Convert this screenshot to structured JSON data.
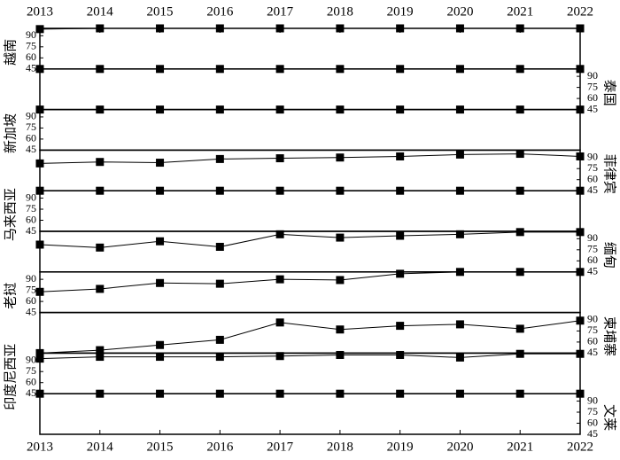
{
  "chart_data": {
    "type": "line",
    "marker": "square",
    "color": "#000000",
    "x": [
      2013,
      2014,
      2015,
      2016,
      2017,
      2018,
      2019,
      2020,
      2021,
      2022
    ],
    "xlim": [
      2013,
      2022
    ],
    "xticks": [
      2013,
      2014,
      2015,
      2016,
      2017,
      2018,
      2019,
      2020,
      2021,
      2022
    ],
    "ylim": [
      45,
      100
    ],
    "yticks": [
      45,
      60,
      75,
      90
    ],
    "series": [
      {
        "name": "越南",
        "values": [
          99,
          100,
          100,
          100,
          100,
          100,
          100,
          100,
          100,
          100
        ]
      },
      {
        "name": "泰国",
        "values": [
          100,
          100,
          100,
          100,
          100,
          100,
          100,
          100,
          100,
          100
        ]
      },
      {
        "name": "新加坡",
        "values": [
          100,
          100,
          100,
          100,
          100,
          100,
          100,
          100,
          100,
          100
        ]
      },
      {
        "name": "菲律宾",
        "values": [
          82,
          84,
          83,
          88,
          89,
          90,
          91.5,
          94,
          95,
          91.5
        ]
      },
      {
        "name": "马来西亚",
        "values": [
          100,
          100,
          100,
          100,
          100,
          100,
          100,
          100,
          100,
          100
        ]
      },
      {
        "name": "缅甸",
        "values": [
          82,
          78,
          86.5,
          79,
          96,
          91.5,
          94,
          96,
          99,
          99
        ]
      },
      {
        "name": "老挝",
        "values": [
          73,
          77,
          85,
          84,
          90,
          89,
          97.5,
          100,
          100,
          100
        ]
      },
      {
        "name": "柬埔寨",
        "values": [
          45,
          49,
          56,
          63,
          86.5,
          77,
          82,
          84,
          78,
          89
        ]
      },
      {
        "name": "印度尼西亚",
        "values": [
          92.5,
          95,
          95,
          95,
          96,
          97.5,
          97.5,
          94,
          99,
          99
        ]
      },
      {
        "name": "文莱",
        "values": [
          100,
          100,
          100,
          100,
          100,
          100,
          100,
          100,
          100,
          100
        ]
      }
    ]
  }
}
